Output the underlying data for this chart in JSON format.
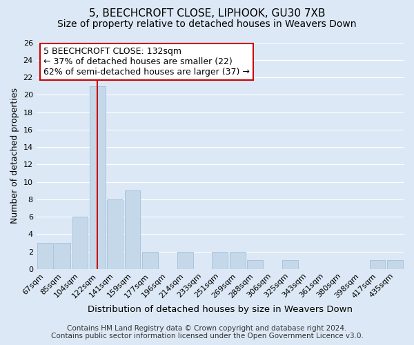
{
  "title": "5, BEECHCROFT CLOSE, LIPHOOK, GU30 7XB",
  "subtitle": "Size of property relative to detached houses in Weavers Down",
  "xlabel": "Distribution of detached houses by size in Weavers Down",
  "ylabel": "Number of detached properties",
  "bar_labels": [
    "67sqm",
    "85sqm",
    "104sqm",
    "122sqm",
    "141sqm",
    "159sqm",
    "177sqm",
    "196sqm",
    "214sqm",
    "233sqm",
    "251sqm",
    "269sqm",
    "288sqm",
    "306sqm",
    "325sqm",
    "343sqm",
    "361sqm",
    "380sqm",
    "398sqm",
    "417sqm",
    "435sqm"
  ],
  "bar_values": [
    3,
    3,
    6,
    21,
    8,
    9,
    2,
    0,
    2,
    0,
    2,
    2,
    1,
    0,
    1,
    0,
    0,
    0,
    0,
    1,
    1
  ],
  "bar_color": "#c5d8ea",
  "bar_edge_color": "#aac4dc",
  "vline_x_index": 3,
  "vline_color": "#cc0000",
  "ylim": [
    0,
    26
  ],
  "yticks": [
    0,
    2,
    4,
    6,
    8,
    10,
    12,
    14,
    16,
    18,
    20,
    22,
    24,
    26
  ],
  "annotation_line1": "5 BEECHCROFT CLOSE: 132sqm",
  "annotation_line2": "← 37% of detached houses are smaller (22)",
  "annotation_line3": "62% of semi-detached houses are larger (37) →",
  "annotation_box_color": "#ffffff",
  "annotation_box_edge": "#cc0000",
  "footer_line1": "Contains HM Land Registry data © Crown copyright and database right 2024.",
  "footer_line2": "Contains public sector information licensed under the Open Government Licence v3.0.",
  "bg_color": "#dce8f5",
  "plot_bg_color": "#dce8f5",
  "grid_color": "#ffffff",
  "title_fontsize": 11,
  "subtitle_fontsize": 10,
  "xlabel_fontsize": 9.5,
  "ylabel_fontsize": 9,
  "tick_fontsize": 8,
  "annotation_fontsize": 9,
  "footer_fontsize": 7.5
}
